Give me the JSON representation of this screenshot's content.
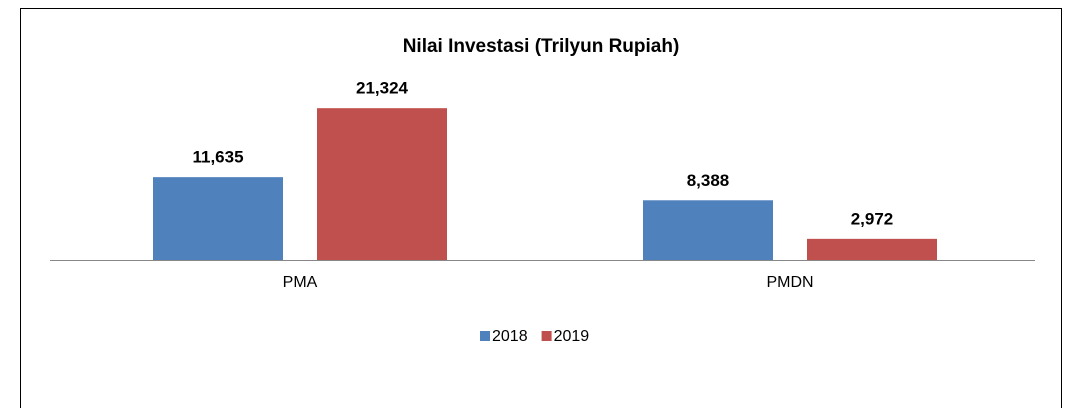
{
  "chart_data": {
    "type": "bar",
    "title": "Nilai Investasi (Trilyun Rupiah)",
    "categories": [
      "PMA",
      "PMDN"
    ],
    "series": [
      {
        "name": "2018",
        "color": "#4f81bd",
        "values": [
          11.635,
          8.388
        ],
        "value_labels": [
          "11,635",
          "8,388"
        ]
      },
      {
        "name": "2019",
        "color": "#c0504d",
        "values": [
          21.324,
          2.972
        ],
        "value_labels": [
          "21,324",
          "2,972"
        ]
      }
    ],
    "ylim": [
      0,
      25
    ],
    "legend": "bottom"
  }
}
